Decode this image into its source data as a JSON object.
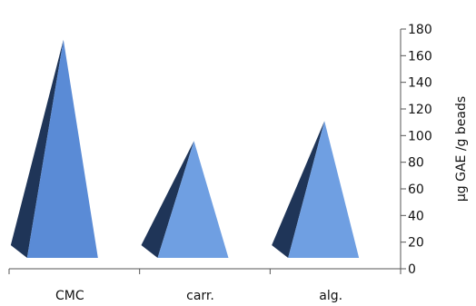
{
  "chart_data": {
    "type": "bar",
    "mark_shape": "pyramid",
    "categories": [
      "CMC",
      "carr.",
      "alg."
    ],
    "values": [
      172,
      96,
      111
    ],
    "ylabel": "µg GAE /g beads",
    "ylim": [
      0,
      180
    ],
    "yticks": [
      0,
      20,
      40,
      60,
      80,
      100,
      120,
      140,
      160,
      180
    ],
    "y_axis_side": "right",
    "grid": false,
    "legend": "none",
    "colors": {
      "face_light": "#6f9fe2",
      "face_mid": "#5a8bd6",
      "face_dark": "#1f3558",
      "axis": "#555555"
    }
  }
}
